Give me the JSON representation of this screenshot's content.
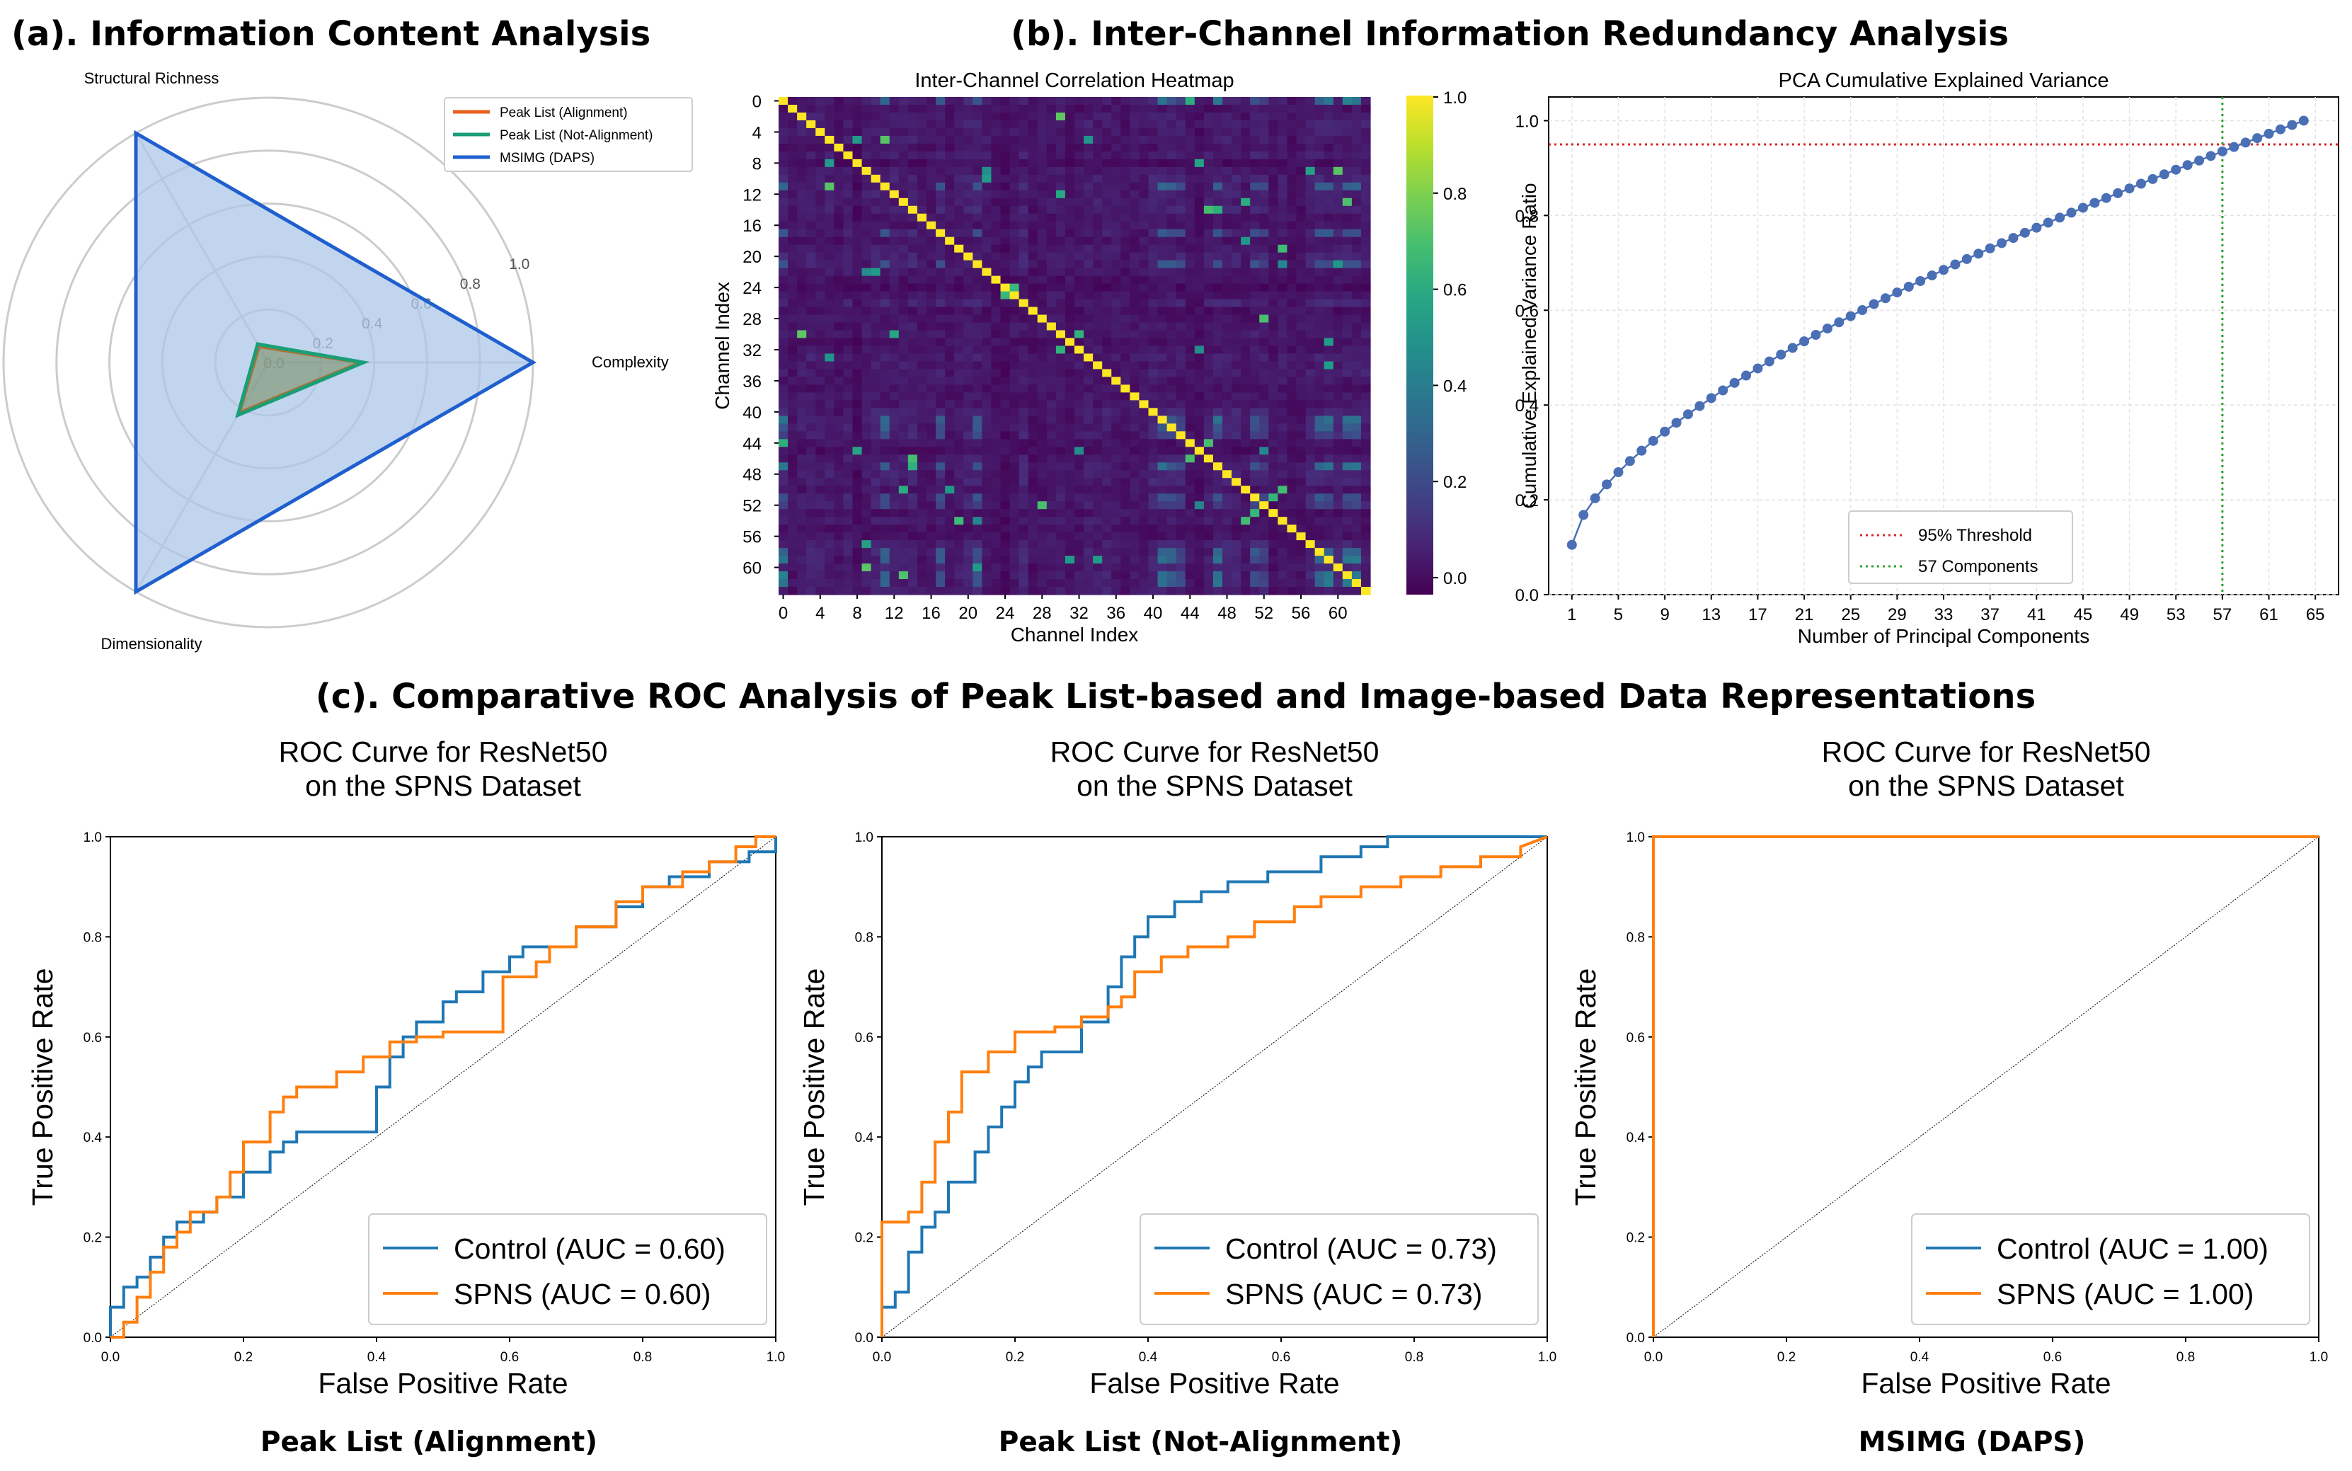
{
  "titles": {
    "a": "(a). Information Content Analysis",
    "b": "(b). Inter-Channel Information Redundancy Analysis",
    "c": "(c). Comparative ROC Analysis of Peak List-based and Image-based Data Representations"
  },
  "colors": {
    "orange": "#ff7f0e",
    "blue": "#1f77b4",
    "radar_orange": "#e8601c",
    "radar_green": "#1a9e77",
    "radar_blue": "#1f5fcf",
    "radar_fill": "#aec7e8",
    "threshold_red": "#d62728",
    "threshold_green": "#2ca02c",
    "pca_point": "#4a6fb5"
  },
  "chart_data": [
    {
      "id": "radar",
      "type": "radar",
      "axes": [
        "Structural Richness",
        "Complexity",
        "Dimensionality"
      ],
      "radial_ticks": [
        "0.0",
        "0.2",
        "0.4",
        "0.6",
        "0.8",
        "1.0"
      ],
      "rlim": [
        0,
        1.0
      ],
      "series": [
        {
          "name": "Peak List (Alignment)",
          "values": [
            0.07,
            0.35,
            0.22
          ],
          "color": "#e8601c"
        },
        {
          "name": "Peak List (Not-Alignment)",
          "values": [
            0.08,
            0.36,
            0.23
          ],
          "color": "#1a9e77"
        },
        {
          "name": "MSIMG (DAPS)",
          "values": [
            1.0,
            1.0,
            1.0
          ],
          "color": "#1f5fcf"
        }
      ]
    },
    {
      "id": "heatmap",
      "type": "heatmap",
      "title": "Inter-Channel Correlation Heatmap",
      "xlabel": "Channel Index",
      "ylabel": "Channel Index",
      "size": 64,
      "tick_labels": [
        "0",
        "4",
        "8",
        "12",
        "16",
        "20",
        "24",
        "28",
        "32",
        "36",
        "40",
        "44",
        "48",
        "52",
        "56",
        "60"
      ],
      "colorbar_ticks": [
        "0.0",
        "0.2",
        "0.4",
        "0.6",
        "0.8",
        "1.0"
      ],
      "vmin": 0,
      "vmax": 1.0,
      "diagonal": 1.0,
      "offdiag_typical": [
        0.0,
        0.4
      ]
    },
    {
      "id": "pca",
      "type": "scatter",
      "title": "PCA Cumulative Explained Variance",
      "xlabel": "Number of Principal Components",
      "ylabel": "Cumulative Explained Variance Ratio",
      "xticks": [
        "1",
        "5",
        "9",
        "13",
        "17",
        "21",
        "25",
        "29",
        "33",
        "37",
        "41",
        "45",
        "49",
        "53",
        "57",
        "61",
        "65"
      ],
      "yticks": [
        "0.0",
        "0.2",
        "0.4",
        "0.6",
        "0.8",
        "1.0"
      ],
      "xlim": [
        -1,
        67
      ],
      "ylim": [
        0,
        1.05
      ],
      "n_components": 64,
      "first_value": 0.105,
      "threshold": 0.95,
      "threshold_components": 57,
      "legend": [
        "95% Threshold",
        "57 Components"
      ]
    },
    {
      "id": "roc1",
      "type": "line",
      "title_lines": [
        "ROC Curve for ResNet50",
        "on the SPNS Dataset"
      ],
      "xlabel": "False Positive Rate",
      "ylabel": "True Positive Rate",
      "ticks": [
        "0.0",
        "0.2",
        "0.4",
        "0.6",
        "0.8",
        "1.0"
      ],
      "caption": "Peak List (Alignment)",
      "series": [
        {
          "name": "Control (AUC = 0.60)",
          "color": "#1f77b4",
          "x": [
            0,
            0,
            0.02,
            0.02,
            0.04,
            0.04,
            0.06,
            0.06,
            0.08,
            0.08,
            0.1,
            0.1,
            0.14,
            0.14,
            0.16,
            0.16,
            0.2,
            0.2,
            0.24,
            0.24,
            0.26,
            0.26,
            0.28,
            0.28,
            0.4,
            0.4,
            0.42,
            0.42,
            0.44,
            0.44,
            0.46,
            0.46,
            0.5,
            0.5,
            0.52,
            0.52,
            0.56,
            0.56,
            0.6,
            0.6,
            0.62,
            0.62,
            0.7,
            0.7,
            0.76,
            0.76,
            0.8,
            0.8,
            0.84,
            0.84,
            0.9,
            0.9,
            0.96,
            0.96,
            1.0,
            1.0
          ],
          "y": [
            0,
            0.06,
            0.06,
            0.1,
            0.1,
            0.12,
            0.12,
            0.16,
            0.16,
            0.2,
            0.2,
            0.23,
            0.23,
            0.25,
            0.25,
            0.28,
            0.28,
            0.33,
            0.33,
            0.37,
            0.37,
            0.39,
            0.39,
            0.41,
            0.41,
            0.5,
            0.5,
            0.56,
            0.56,
            0.6,
            0.6,
            0.63,
            0.63,
            0.67,
            0.67,
            0.69,
            0.69,
            0.73,
            0.73,
            0.76,
            0.76,
            0.78,
            0.78,
            0.82,
            0.82,
            0.86,
            0.86,
            0.9,
            0.9,
            0.92,
            0.92,
            0.95,
            0.95,
            0.97,
            0.97,
            1.0
          ]
        },
        {
          "name": "SPNS (AUC = 0.60)",
          "color": "#ff7f0e",
          "x": [
            0,
            0.02,
            0.02,
            0.04,
            0.04,
            0.06,
            0.06,
            0.08,
            0.08,
            0.1,
            0.1,
            0.12,
            0.12,
            0.16,
            0.16,
            0.18,
            0.18,
            0.2,
            0.2,
            0.24,
            0.24,
            0.26,
            0.26,
            0.28,
            0.28,
            0.34,
            0.34,
            0.38,
            0.38,
            0.42,
            0.42,
            0.46,
            0.46,
            0.5,
            0.5,
            0.59,
            0.59,
            0.64,
            0.64,
            0.66,
            0.66,
            0.7,
            0.7,
            0.76,
            0.76,
            0.8,
            0.8,
            0.86,
            0.86,
            0.9,
            0.9,
            0.94,
            0.94,
            0.97,
            0.97,
            1.0
          ],
          "y": [
            0,
            0,
            0.03,
            0.03,
            0.08,
            0.08,
            0.13,
            0.13,
            0.18,
            0.18,
            0.21,
            0.21,
            0.25,
            0.25,
            0.28,
            0.28,
            0.33,
            0.33,
            0.39,
            0.39,
            0.45,
            0.45,
            0.48,
            0.48,
            0.5,
            0.5,
            0.53,
            0.53,
            0.56,
            0.56,
            0.59,
            0.59,
            0.6,
            0.6,
            0.61,
            0.61,
            0.72,
            0.72,
            0.75,
            0.75,
            0.78,
            0.78,
            0.82,
            0.82,
            0.87,
            0.87,
            0.9,
            0.9,
            0.93,
            0.93,
            0.95,
            0.95,
            0.98,
            0.98,
            1.0,
            1.0
          ]
        }
      ]
    },
    {
      "id": "roc2",
      "type": "line",
      "title_lines": [
        "ROC Curve for ResNet50",
        "on the SPNS Dataset"
      ],
      "xlabel": "False Positive Rate",
      "ylabel": "True Positive Rate",
      "ticks": [
        "0.0",
        "0.2",
        "0.4",
        "0.6",
        "0.8",
        "1.0"
      ],
      "caption": "Peak List (Not-Alignment)",
      "series": [
        {
          "name": "Control (AUC = 0.73)",
          "color": "#1f77b4",
          "x": [
            0,
            0,
            0.02,
            0.02,
            0.04,
            0.04,
            0.06,
            0.06,
            0.08,
            0.08,
            0.1,
            0.1,
            0.14,
            0.14,
            0.16,
            0.16,
            0.18,
            0.18,
            0.2,
            0.2,
            0.22,
            0.22,
            0.24,
            0.24,
            0.3,
            0.3,
            0.34,
            0.34,
            0.36,
            0.36,
            0.38,
            0.38,
            0.4,
            0.4,
            0.44,
            0.44,
            0.48,
            0.48,
            0.52,
            0.52,
            0.58,
            0.58,
            0.66,
            0.66,
            0.72,
            0.72,
            0.76,
            0.76,
            1.0
          ],
          "y": [
            0,
            0.06,
            0.06,
            0.09,
            0.09,
            0.17,
            0.17,
            0.22,
            0.22,
            0.25,
            0.25,
            0.31,
            0.31,
            0.37,
            0.37,
            0.42,
            0.42,
            0.46,
            0.46,
            0.51,
            0.51,
            0.54,
            0.54,
            0.57,
            0.57,
            0.63,
            0.63,
            0.7,
            0.7,
            0.76,
            0.76,
            0.8,
            0.8,
            0.84,
            0.84,
            0.87,
            0.87,
            0.89,
            0.89,
            0.91,
            0.91,
            0.93,
            0.93,
            0.96,
            0.96,
            0.98,
            0.98,
            1.0,
            1.0
          ]
        },
        {
          "name": "SPNS (AUC = 0.73)",
          "color": "#ff7f0e",
          "x": [
            0,
            0,
            0.04,
            0.04,
            0.06,
            0.06,
            0.08,
            0.08,
            0.1,
            0.1,
            0.12,
            0.12,
            0.16,
            0.16,
            0.2,
            0.2,
            0.26,
            0.26,
            0.3,
            0.3,
            0.34,
            0.34,
            0.36,
            0.36,
            0.38,
            0.38,
            0.42,
            0.42,
            0.46,
            0.46,
            0.52,
            0.52,
            0.56,
            0.56,
            0.62,
            0.62,
            0.66,
            0.66,
            0.72,
            0.72,
            0.78,
            0.78,
            0.84,
            0.84,
            0.9,
            0.9,
            0.96,
            0.96,
            1.0
          ],
          "y": [
            0,
            0.23,
            0.23,
            0.25,
            0.25,
            0.31,
            0.31,
            0.39,
            0.39,
            0.45,
            0.45,
            0.53,
            0.53,
            0.57,
            0.57,
            0.61,
            0.61,
            0.62,
            0.62,
            0.64,
            0.64,
            0.66,
            0.66,
            0.68,
            0.68,
            0.73,
            0.73,
            0.76,
            0.76,
            0.78,
            0.78,
            0.8,
            0.8,
            0.83,
            0.83,
            0.86,
            0.86,
            0.88,
            0.88,
            0.9,
            0.9,
            0.92,
            0.92,
            0.94,
            0.94,
            0.96,
            0.96,
            0.98,
            1.0
          ]
        }
      ]
    },
    {
      "id": "roc3",
      "type": "line",
      "title_lines": [
        "ROC Curve for ResNet50",
        "on the SPNS Dataset"
      ],
      "xlabel": "False Positive Rate",
      "ylabel": "True Positive Rate",
      "ticks": [
        "0.0",
        "0.2",
        "0.4",
        "0.6",
        "0.8",
        "1.0"
      ],
      "caption": "MSIMG (DAPS)",
      "series": [
        {
          "name": "Control (AUC = 1.00)",
          "color": "#1f77b4",
          "x": [
            0,
            0,
            1.0
          ],
          "y": [
            0,
            1.0,
            1.0
          ]
        },
        {
          "name": "SPNS (AUC = 1.00)",
          "color": "#ff7f0e",
          "x": [
            0,
            0,
            1.0
          ],
          "y": [
            0,
            1.0,
            1.0
          ]
        }
      ]
    }
  ]
}
